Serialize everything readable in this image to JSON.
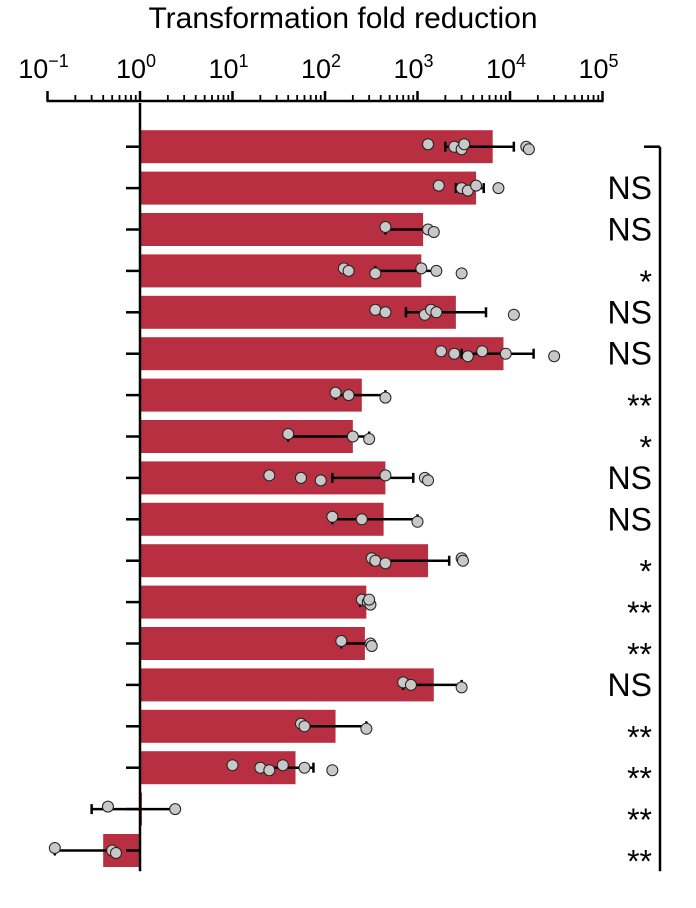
{
  "chart_data": {
    "type": "bar",
    "orientation": "horizontal",
    "title": "Transformation fold reduction",
    "x_scale": "log10",
    "xlim": [
      0.1,
      100000
    ],
    "x_ticks": [
      {
        "value": 0.1,
        "base": "10",
        "exp": "−1"
      },
      {
        "value": 1,
        "base": "10",
        "exp": "0"
      },
      {
        "value": 10,
        "base": "10",
        "exp": "1"
      },
      {
        "value": 100,
        "base": "10",
        "exp": "2"
      },
      {
        "value": 1000,
        "base": "10",
        "exp": "3"
      },
      {
        "value": 10000,
        "base": "10",
        "exp": "4"
      },
      {
        "value": 100000,
        "base": "10",
        "exp": "5"
      }
    ],
    "axis_position": "top",
    "grid": false,
    "bar_color": "#b92f42",
    "point_color": "#c8c8c8",
    "bars": [
      {
        "value": 6500,
        "err_low": 2000,
        "err_high": 11000,
        "points": [
          1300,
          2500,
          3000,
          3200,
          15000,
          16000
        ],
        "sig": ""
      },
      {
        "value": 4300,
        "err_low": 2600,
        "err_high": 5200,
        "points": [
          1700,
          3000,
          3500,
          4300,
          7500
        ],
        "sig": "NS"
      },
      {
        "value": 1150,
        "err_low": 450,
        "err_high": 1300,
        "points": [
          450,
          1300,
          1500
        ],
        "sig": "NS"
      },
      {
        "value": 1100,
        "err_low": 350,
        "err_high": 1700,
        "points": [
          160,
          180,
          350,
          1100,
          1600,
          3000
        ],
        "sig": "*"
      },
      {
        "value": 2600,
        "err_low": 750,
        "err_high": 5500,
        "points": [
          350,
          450,
          1200,
          1400,
          1600,
          11000
        ],
        "sig": "NS"
      },
      {
        "value": 8500,
        "err_low": 3000,
        "err_high": 18000,
        "points": [
          1800,
          2500,
          3500,
          5000,
          9000,
          30000
        ],
        "sig": "NS"
      },
      {
        "value": 250,
        "err_low": 130,
        "err_high": 450,
        "points": [
          130,
          180,
          450
        ],
        "sig": "**"
      },
      {
        "value": 200,
        "err_low": 40,
        "err_high": 300,
        "points": [
          40,
          200,
          300
        ],
        "sig": "*"
      },
      {
        "value": 450,
        "err_low": 120,
        "err_high": 900,
        "points": [
          25,
          55,
          90,
          450,
          1200,
          1300
        ],
        "sig": "NS"
      },
      {
        "value": 430,
        "err_low": 120,
        "err_high": 1000,
        "points": [
          120,
          250,
          1000
        ],
        "sig": "NS"
      },
      {
        "value": 1300,
        "err_low": 320,
        "err_high": 2200,
        "points": [
          320,
          350,
          450,
          3000,
          3100
        ],
        "sig": "*"
      },
      {
        "value": 280,
        "err_low": 240,
        "err_high": 330,
        "points": [
          250,
          290,
          310,
          300
        ],
        "sig": "**"
      },
      {
        "value": 270,
        "err_low": 150,
        "err_high": 330,
        "points": [
          150,
          310,
          320
        ],
        "sig": "**"
      },
      {
        "value": 1500,
        "err_low": 700,
        "err_high": 3000,
        "points": [
          700,
          850,
          3000
        ],
        "sig": "NS"
      },
      {
        "value": 130,
        "err_low": 60,
        "err_high": 280,
        "points": [
          55,
          60,
          280
        ],
        "sig": "**"
      },
      {
        "value": 48,
        "err_low": 20,
        "err_high": 75,
        "points": [
          10,
          20,
          25,
          35,
          60,
          120
        ],
        "sig": "**"
      },
      {
        "value": 1.05,
        "err_low": 0.3,
        "err_high": 2.5,
        "points": [
          0.45,
          2.4
        ],
        "sig": "**"
      },
      {
        "value": 0.4,
        "err_low": 0.12,
        "err_high": 0.5,
        "points": [
          0.12,
          0.5,
          0.55
        ],
        "sig": "**"
      }
    ]
  }
}
